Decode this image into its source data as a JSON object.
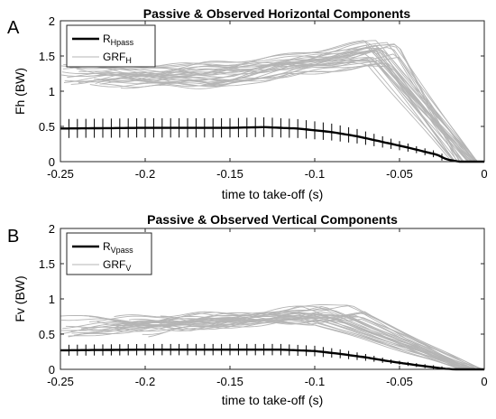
{
  "chart_data": [
    {
      "type": "line",
      "panel_label": "A",
      "title": "Passive & Observed Horizontal Components",
      "xlabel": "time to take-off (s)",
      "ylabel": "Fh (BW)",
      "xlim": [
        -0.25,
        0
      ],
      "ylim": [
        0,
        2
      ],
      "xticks": [
        -0.25,
        -0.2,
        -0.15,
        -0.1,
        -0.05,
        0
      ],
      "xtick_labels": [
        "-0.25",
        "-0.2",
        "-0.15",
        "-0.1",
        "-0.05",
        "0"
      ],
      "yticks": [
        0,
        0.5,
        1,
        1.5,
        2
      ],
      "ytick_labels": [
        "0",
        "0.5",
        "1",
        "1.5",
        "2"
      ],
      "legend": {
        "placement": "top-left",
        "entries": [
          {
            "main": "R",
            "sub": "Hpass",
            "style": "thick-black"
          },
          {
            "main": "GRF",
            "sub": "H",
            "style": "thin-gray"
          }
        ]
      },
      "colors": {
        "passive": "#000000",
        "observed": "#b5b5b5"
      },
      "passive": {
        "x": [
          -0.25,
          -0.2,
          -0.15,
          -0.13,
          -0.11,
          -0.09,
          -0.075,
          -0.06,
          -0.045,
          -0.035,
          -0.028,
          -0.022,
          -0.015,
          0
        ],
        "y": [
          0.47,
          0.48,
          0.48,
          0.49,
          0.47,
          0.42,
          0.36,
          0.28,
          0.2,
          0.14,
          0.1,
          0.03,
          0.0,
          0.0
        ],
        "error": 0.14,
        "error_until": -0.022
      },
      "observed": {
        "count": 32,
        "start_x_range": [
          -0.25,
          -0.19
        ],
        "start_y_range": [
          1.05,
          1.4
        ],
        "peak_x_range": [
          -0.07,
          -0.05
        ],
        "peak_y_range": [
          1.35,
          1.72
        ],
        "end_x_range": [
          -0.02,
          -0.003
        ],
        "mid_y_range": [
          1.05,
          1.4
        ]
      }
    },
    {
      "type": "line",
      "panel_label": "B",
      "title": "Passive & Observed Vertical Components",
      "xlabel": "time to take-off (s)",
      "ylabel": "Fv (BW)",
      "xlim": [
        -0.25,
        0
      ],
      "ylim": [
        0,
        2
      ],
      "xticks": [
        -0.25,
        -0.2,
        -0.15,
        -0.1,
        -0.05,
        0
      ],
      "xtick_labels": [
        "-0.25",
        "-0.2",
        "-0.15",
        "-0.1",
        "-0.05",
        "0"
      ],
      "yticks": [
        0,
        0.5,
        1,
        1.5,
        2
      ],
      "ytick_labels": [
        "0",
        "0.5",
        "1",
        "1.5",
        "2"
      ],
      "legend": {
        "placement": "top-left",
        "entries": [
          {
            "main": "R",
            "sub": "Vpass",
            "style": "thick-black"
          },
          {
            "main": "GRF",
            "sub": "V",
            "style": "thin-gray"
          }
        ]
      },
      "colors": {
        "passive": "#000000",
        "observed": "#b5b5b5"
      },
      "passive": {
        "x": [
          -0.25,
          -0.2,
          -0.15,
          -0.12,
          -0.1,
          -0.085,
          -0.07,
          -0.055,
          -0.04,
          -0.03,
          -0.024,
          -0.018,
          0
        ],
        "y": [
          0.27,
          0.28,
          0.28,
          0.28,
          0.26,
          0.22,
          0.17,
          0.11,
          0.06,
          0.03,
          0.01,
          0.0,
          0.0
        ],
        "error": 0.08,
        "error_until": -0.022
      },
      "observed": {
        "count": 30,
        "start_x_range": [
          -0.25,
          -0.19
        ],
        "start_y_range": [
          0.45,
          0.78
        ],
        "peak_x_range": [
          -0.11,
          -0.07
        ],
        "peak_y_range": [
          0.6,
          0.94
        ],
        "end_x_range": [
          -0.015,
          0
        ],
        "mid_y_range": [
          0.55,
          0.8
        ]
      }
    }
  ]
}
